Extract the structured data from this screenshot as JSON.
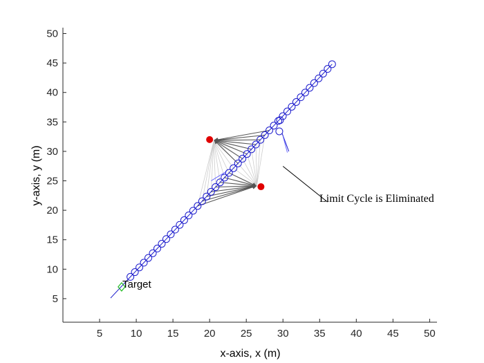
{
  "chart_data": {
    "type": "scatter",
    "xlabel": "x-axis, x (m)",
    "ylabel": "y-axis, y (m)",
    "xlim": [
      0,
      51
    ],
    "ylim": [
      1,
      51
    ],
    "xticks": [
      "5",
      "10",
      "15",
      "20",
      "25",
      "30",
      "35",
      "40",
      "45",
      "50"
    ],
    "yticks": [
      "5",
      "10",
      "15",
      "20",
      "25",
      "30",
      "35",
      "40",
      "45",
      "50"
    ],
    "grid": false,
    "target": {
      "label": "Target",
      "x": 8.0,
      "y": 7.0,
      "color": "#22bb22"
    },
    "obstacles": {
      "color": "#e00000",
      "points": [
        {
          "x": 20.0,
          "y": 32.0
        },
        {
          "x": 27.0,
          "y": 24.0
        }
      ]
    },
    "trajectory": {
      "color": "#1a1acc",
      "start": {
        "x": 36.7,
        "y": 44.8
      },
      "end": {
        "x": 9.2,
        "y": 8.7
      },
      "count": 46,
      "detour_points": [
        {
          "x": 29.6,
          "y": 35.3
        },
        {
          "x": 29.5,
          "y": 33.4
        }
      ],
      "tail_start": {
        "x": 6.5,
        "y": 5.1
      }
    },
    "annotation": {
      "text": "Limit Cycle is Eliminated",
      "arrow_from": {
        "x": 34.0,
        "y": 22.0
      },
      "arrow_to": {
        "x": 30.0,
        "y": 27.0
      }
    },
    "colors": {
      "axis": "#262626",
      "force_vector": "#555555",
      "force_vector_faint": "#cccccc"
    }
  }
}
